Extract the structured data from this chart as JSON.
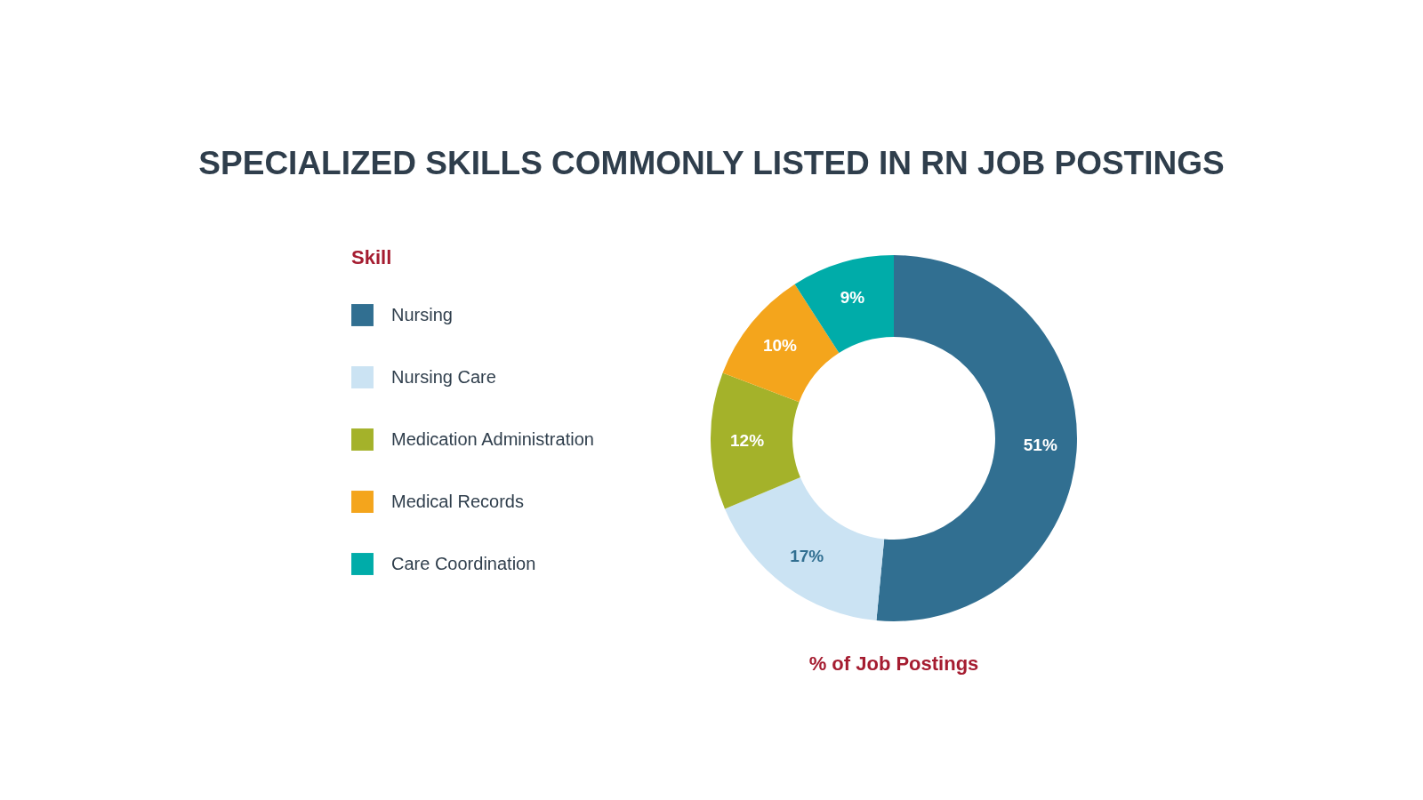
{
  "chart_data": {
    "type": "donut",
    "title": "SPECIALIZED SKILLS COMMONLY LISTED IN RN JOB POSTINGS",
    "legend_title": "Skill",
    "legend": "left",
    "categories": [
      "Nursing",
      "Nursing Care",
      "Medication Administration",
      "Medical Records",
      "Care Coordination"
    ],
    "values": [
      51,
      17,
      12,
      10,
      9
    ],
    "value_labels": [
      "51%",
      "17%",
      "12%",
      "10%",
      "9%"
    ],
    "colors": [
      "#316f91",
      "#cbe3f3",
      "#a4b22a",
      "#f4a51c",
      "#00aca9"
    ],
    "annotations": [
      "% of Job Postings"
    ]
  }
}
